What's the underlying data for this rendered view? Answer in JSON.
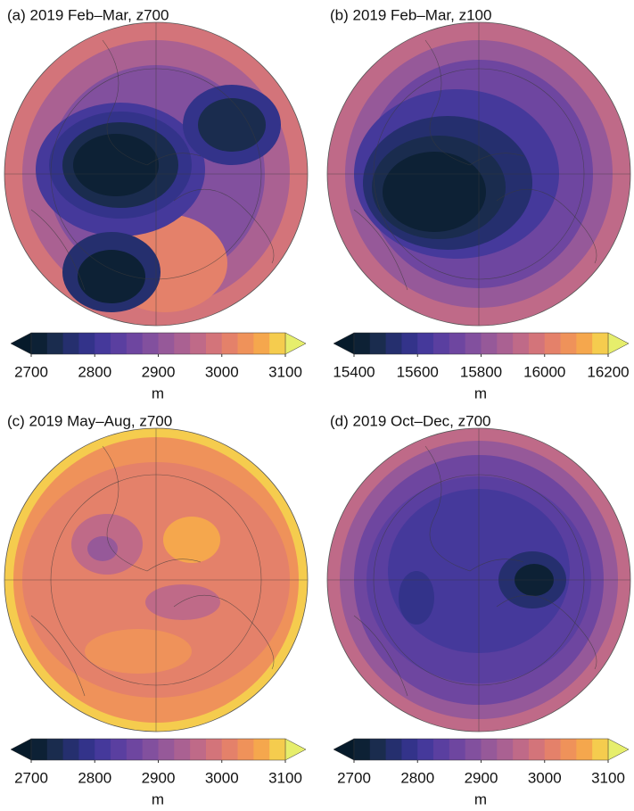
{
  "panels": [
    {
      "title": "(a) 2019 Feb–Mar, z700",
      "colorbar": {
        "lim": [
          2700,
          3100
        ],
        "ticks": [
          2700,
          2800,
          2900,
          3000,
          3100
        ],
        "unit": "m"
      }
    },
    {
      "title": "(b) 2019 Feb–Mar, z100",
      "colorbar": {
        "lim": [
          15400,
          16200
        ],
        "ticks": [
          15400,
          15600,
          15800,
          16000,
          16200
        ],
        "unit": "m"
      }
    },
    {
      "title": "(c) 2019 May–Aug, z700",
      "colorbar": {
        "lim": [
          2700,
          3100
        ],
        "ticks": [
          2700,
          2800,
          2900,
          3000,
          3100
        ],
        "unit": "m"
      }
    },
    {
      "title": "(d) 2019 Oct–Dec, z700",
      "colorbar": {
        "lim": [
          2700,
          3100
        ],
        "ticks": [
          2700,
          2800,
          2900,
          3000,
          3100
        ],
        "unit": "m"
      }
    }
  ],
  "colormap": {
    "under": "#061a2a",
    "over": "#e6ee6c",
    "colors": [
      "#0d2135",
      "#1a2c4e",
      "#252f6e",
      "#33338a",
      "#45399b",
      "#5a3fa0",
      "#6e46a0",
      "#82509e",
      "#965999",
      "#aa6192",
      "#bf6a88",
      "#d3747a",
      "#e4816a",
      "#ef925a",
      "#f5a74d",
      "#f5cc4e"
    ]
  }
}
